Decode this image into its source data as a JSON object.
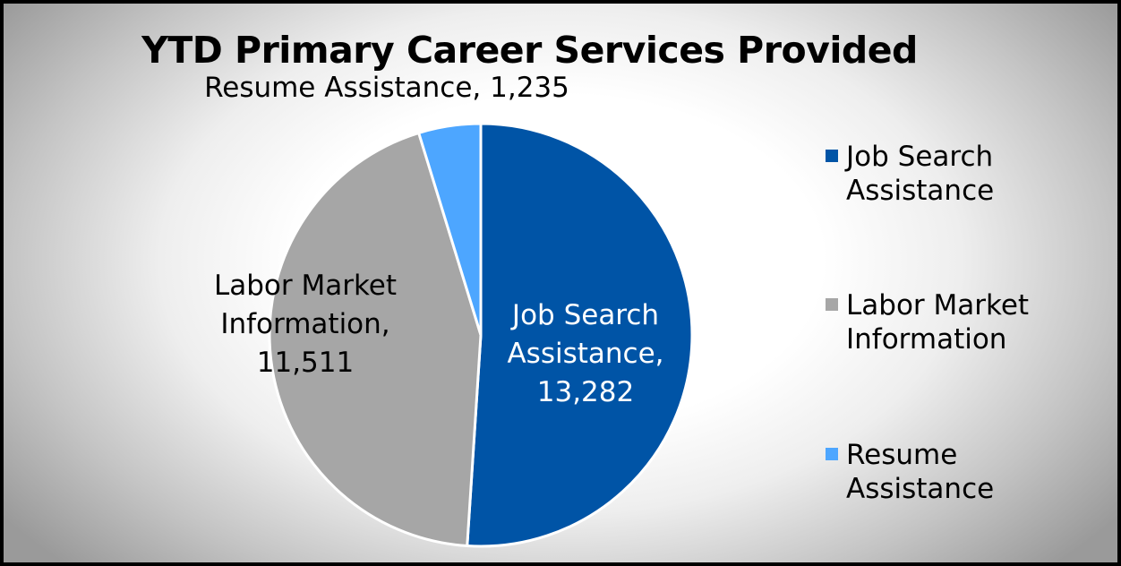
{
  "chart_data": {
    "type": "pie",
    "title": "YTD Primary Career Services Provided",
    "slices": [
      {
        "label": "Job Search Assistance",
        "value": 13282,
        "value_text": "13,282",
        "color": "#0054a6",
        "label_color": "#ffffff",
        "data_label_lines": [
          "Job Search",
          "Assistance,",
          "13,282"
        ]
      },
      {
        "label": "Labor Market Information",
        "value": 11511,
        "value_text": "11,511",
        "color": "#a6a6a6",
        "label_color": "#000000",
        "data_label_lines": [
          "Labor Market",
          "Information,",
          "11,511"
        ]
      },
      {
        "label": "Resume Assistance",
        "value": 1235,
        "value_text": "1,235",
        "color": "#4da6ff",
        "label_color": "#000000",
        "data_label_lines": [
          "Resume Assistance, 1,235"
        ]
      }
    ],
    "legend": {
      "position": "right",
      "entries": [
        {
          "lines": [
            "Job Search",
            "Assistance"
          ],
          "color": "#0054a6"
        },
        {
          "lines": [
            "Labor Market",
            "Information"
          ],
          "color": "#a6a6a6"
        },
        {
          "lines": [
            "Resume",
            "Assistance"
          ],
          "color": "#4da6ff"
        }
      ]
    }
  }
}
